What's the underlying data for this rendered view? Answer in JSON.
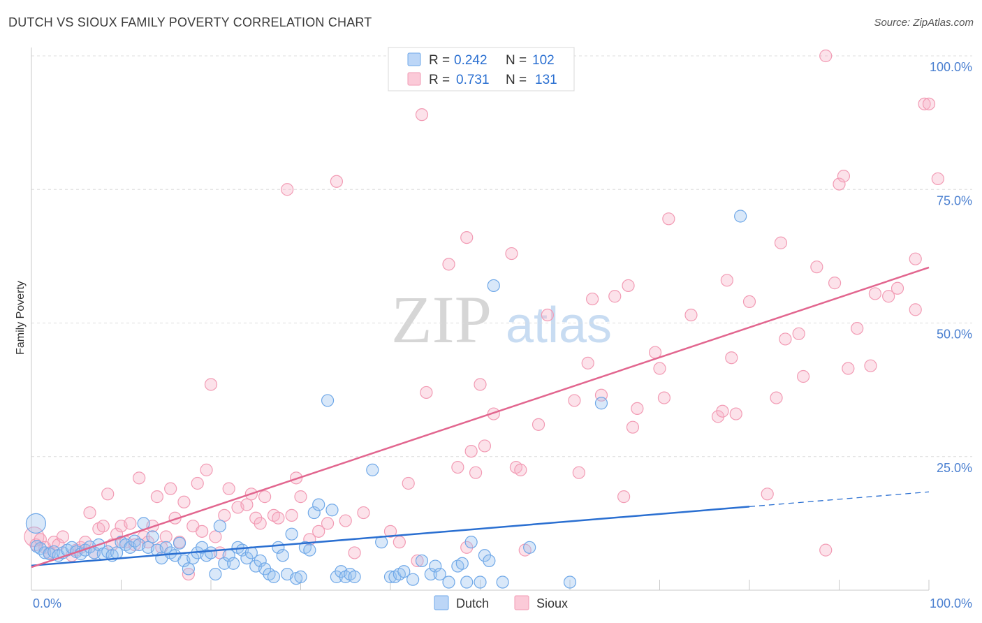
{
  "title": "DUTCH VS SIOUX FAMILY POVERTY CORRELATION CHART",
  "source": "Source: ZipAtlas.com",
  "watermark": {
    "zip": "ZIP",
    "atlas": "atlas"
  },
  "colors": {
    "dutch": "#6fa8e8",
    "dutch_line": "#2a6fd1",
    "sioux": "#f29bb4",
    "sioux_line": "#e2668f",
    "tick_text": "#4a7fd0"
  },
  "legend_top": [
    {
      "series": "Dutch",
      "r_label": "R =",
      "r_value": "0.242",
      "n_label": "N =",
      "n_value": "102"
    },
    {
      "series": "Sioux",
      "r_label": "R =",
      "r_value": "0.731",
      "n_label": "N =",
      "n_value": "131"
    }
  ],
  "legend_bottom": [
    "Dutch",
    "Sioux"
  ],
  "chart_data": {
    "type": "scatter",
    "title": "DUTCH VS SIOUX FAMILY POVERTY CORRELATION CHART",
    "xlabel": "",
    "ylabel": "Family Poverty",
    "xlim": [
      0,
      100
    ],
    "ylim": [
      0,
      100
    ],
    "x_tick_labels": [
      "0.0%",
      "100.0%"
    ],
    "y_tick_labels": [
      "25.0%",
      "50.0%",
      "75.0%",
      "100.0%"
    ],
    "y_ticks": [
      25,
      50,
      75,
      100
    ],
    "grid": true,
    "series": [
      {
        "name": "Dutch",
        "trend": {
          "x": [
            0,
            100
          ],
          "y": [
            4.6,
            18.4
          ],
          "solid_to_x": 80
        },
        "points": [
          [
            0.5,
            12.5
          ],
          [
            0.6,
            8.2
          ],
          [
            1.0,
            7.8
          ],
          [
            1.5,
            7.0
          ],
          [
            2.0,
            6.8
          ],
          [
            2.5,
            7.2
          ],
          [
            3.0,
            6.5
          ],
          [
            3.5,
            7.0
          ],
          [
            4.0,
            7.5
          ],
          [
            4.5,
            8.0
          ],
          [
            5.0,
            7.2
          ],
          [
            5.5,
            6.8
          ],
          [
            6.0,
            7.5
          ],
          [
            6.5,
            8.1
          ],
          [
            7.0,
            7.0
          ],
          [
            7.5,
            8.5
          ],
          [
            8.0,
            6.8
          ],
          [
            8.5,
            7.2
          ],
          [
            9.0,
            6.5
          ],
          [
            9.5,
            7.0
          ],
          [
            10.0,
            9.0
          ],
          [
            10.5,
            8.5
          ],
          [
            11.0,
            8.0
          ],
          [
            11.5,
            9.2
          ],
          [
            12.0,
            8.5
          ],
          [
            12.5,
            12.5
          ],
          [
            13.0,
            8.0
          ],
          [
            13.5,
            10.0
          ],
          [
            14.0,
            7.5
          ],
          [
            14.5,
            6.0
          ],
          [
            15.0,
            8.0
          ],
          [
            15.5,
            7.0
          ],
          [
            16.0,
            6.5
          ],
          [
            16.5,
            8.8
          ],
          [
            17.0,
            5.5
          ],
          [
            17.5,
            4.0
          ],
          [
            18.0,
            6.0
          ],
          [
            18.5,
            7.0
          ],
          [
            19.0,
            8.0
          ],
          [
            19.5,
            6.5
          ],
          [
            20.0,
            7.0
          ],
          [
            20.5,
            3.0
          ],
          [
            21.0,
            12.0
          ],
          [
            21.5,
            5.0
          ],
          [
            22.0,
            6.5
          ],
          [
            22.5,
            5.0
          ],
          [
            23.0,
            8.0
          ],
          [
            23.5,
            7.5
          ],
          [
            24.0,
            6.0
          ],
          [
            24.5,
            7.0
          ],
          [
            25.0,
            4.5
          ],
          [
            25.5,
            5.5
          ],
          [
            26.0,
            4.0
          ],
          [
            26.5,
            3.0
          ],
          [
            27.0,
            2.5
          ],
          [
            27.5,
            8.0
          ],
          [
            28.0,
            6.5
          ],
          [
            28.5,
            3.0
          ],
          [
            29.0,
            10.5
          ],
          [
            29.5,
            2.2
          ],
          [
            30.0,
            2.5
          ],
          [
            30.5,
            8.0
          ],
          [
            31.0,
            7.5
          ],
          [
            31.5,
            14.5
          ],
          [
            32.0,
            16.0
          ],
          [
            33.0,
            35.5
          ],
          [
            33.5,
            15.0
          ],
          [
            34.0,
            2.5
          ],
          [
            34.5,
            3.5
          ],
          [
            35.0,
            2.5
          ],
          [
            35.5,
            3.0
          ],
          [
            36.0,
            2.5
          ],
          [
            38.0,
            22.5
          ],
          [
            39.0,
            9.0
          ],
          [
            40.0,
            2.5
          ],
          [
            40.5,
            2.5
          ],
          [
            41.0,
            3.0
          ],
          [
            41.5,
            3.5
          ],
          [
            42.5,
            2.0
          ],
          [
            43.5,
            5.5
          ],
          [
            44.5,
            3.0
          ],
          [
            45.0,
            4.5
          ],
          [
            45.5,
            3.0
          ],
          [
            46.5,
            1.5
          ],
          [
            47.5,
            4.5
          ],
          [
            48.0,
            5.0
          ],
          [
            48.5,
            1.5
          ],
          [
            49.0,
            9.0
          ],
          [
            50.0,
            1.5
          ],
          [
            50.5,
            6.5
          ],
          [
            51.0,
            5.5
          ],
          [
            51.5,
            57.0
          ],
          [
            52.5,
            1.5
          ],
          [
            55.5,
            8.0
          ],
          [
            60.0,
            1.5
          ],
          [
            63.5,
            35.0
          ],
          [
            79.0,
            70.0
          ]
        ]
      },
      {
        "name": "Sioux",
        "trend": {
          "x": [
            0,
            100
          ],
          "y": [
            4.3,
            60.4
          ]
        },
        "points": [
          [
            0.3,
            10.0
          ],
          [
            0.5,
            8.5
          ],
          [
            1.0,
            9.5
          ],
          [
            1.5,
            8.0
          ],
          [
            2.0,
            7.0
          ],
          [
            2.5,
            9.0
          ],
          [
            3.0,
            8.5
          ],
          [
            3.5,
            10.0
          ],
          [
            4.5,
            6.5
          ],
          [
            5.0,
            7.5
          ],
          [
            5.5,
            8.0
          ],
          [
            6.0,
            9.0
          ],
          [
            6.5,
            14.5
          ],
          [
            7.0,
            7.0
          ],
          [
            7.5,
            11.5
          ],
          [
            8.0,
            12.0
          ],
          [
            8.5,
            18.0
          ],
          [
            9.0,
            8.5
          ],
          [
            9.5,
            10.5
          ],
          [
            10.0,
            12.0
          ],
          [
            10.5,
            9.0
          ],
          [
            11.0,
            12.5
          ],
          [
            11.5,
            8.5
          ],
          [
            12.0,
            21.0
          ],
          [
            12.5,
            10.0
          ],
          [
            13.0,
            9.0
          ],
          [
            13.5,
            12.0
          ],
          [
            14.0,
            17.5
          ],
          [
            14.5,
            8.0
          ],
          [
            15.0,
            10.0
          ],
          [
            15.5,
            19.0
          ],
          [
            16.0,
            13.5
          ],
          [
            16.5,
            9.0
          ],
          [
            17.0,
            16.5
          ],
          [
            17.5,
            3.0
          ],
          [
            18.0,
            12.0
          ],
          [
            18.5,
            20.0
          ],
          [
            19.0,
            11.0
          ],
          [
            19.5,
            22.5
          ],
          [
            20.0,
            38.5
          ],
          [
            20.5,
            10.0
          ],
          [
            21.0,
            7.0
          ],
          [
            21.5,
            14.0
          ],
          [
            22.0,
            19.0
          ],
          [
            23.0,
            15.5
          ],
          [
            24.0,
            16.0
          ],
          [
            24.5,
            18.0
          ],
          [
            25.0,
            13.5
          ],
          [
            25.5,
            12.5
          ],
          [
            26.0,
            17.5
          ],
          [
            27.0,
            14.0
          ],
          [
            27.5,
            13.5
          ],
          [
            28.5,
            75.0
          ],
          [
            29.0,
            14.0
          ],
          [
            29.5,
            21.0
          ],
          [
            30.0,
            17.5
          ],
          [
            31.0,
            9.5
          ],
          [
            32.0,
            11.0
          ],
          [
            33.0,
            12.5
          ],
          [
            34.0,
            76.5
          ],
          [
            35.0,
            13.0
          ],
          [
            36.0,
            7.0
          ],
          [
            37.0,
            14.5
          ],
          [
            40.0,
            11.0
          ],
          [
            41.0,
            9.0
          ],
          [
            42.0,
            20.0
          ],
          [
            43.0,
            5.5
          ],
          [
            43.5,
            89.0
          ],
          [
            44.0,
            37.0
          ],
          [
            46.5,
            61.0
          ],
          [
            47.5,
            23.0
          ],
          [
            48.5,
            8.0
          ],
          [
            48.5,
            66.0
          ],
          [
            49.0,
            26.0
          ],
          [
            49.5,
            22.0
          ],
          [
            50.0,
            38.5
          ],
          [
            50.5,
            27.0
          ],
          [
            51.5,
            33.0
          ],
          [
            53.5,
            63.0
          ],
          [
            54.0,
            23.0
          ],
          [
            54.5,
            22.5
          ],
          [
            55.0,
            7.5
          ],
          [
            56.5,
            31.0
          ],
          [
            57.5,
            51.5
          ],
          [
            60.5,
            35.5
          ],
          [
            61.0,
            22.0
          ],
          [
            62.0,
            42.5
          ],
          [
            62.5,
            54.5
          ],
          [
            63.5,
            36.5
          ],
          [
            65.0,
            55.0
          ],
          [
            66.0,
            17.5
          ],
          [
            66.5,
            57.0
          ],
          [
            67.0,
            30.5
          ],
          [
            67.5,
            34.0
          ],
          [
            69.5,
            44.5
          ],
          [
            70.0,
            41.5
          ],
          [
            70.5,
            36.0
          ],
          [
            71.0,
            69.5
          ],
          [
            73.5,
            51.5
          ],
          [
            76.5,
            32.5
          ],
          [
            77.0,
            33.5
          ],
          [
            77.5,
            58.0
          ],
          [
            78.0,
            43.5
          ],
          [
            78.5,
            33.0
          ],
          [
            80.0,
            54.0
          ],
          [
            82.0,
            18.0
          ],
          [
            83.0,
            36.0
          ],
          [
            83.5,
            65.0
          ],
          [
            84.0,
            47.0
          ],
          [
            85.5,
            48.0
          ],
          [
            86.0,
            40.0
          ],
          [
            87.5,
            60.5
          ],
          [
            88.5,
            7.5
          ],
          [
            88.5,
            100.0
          ],
          [
            89.5,
            57.5
          ],
          [
            90.0,
            76.0
          ],
          [
            90.5,
            77.5
          ],
          [
            91.0,
            41.5
          ],
          [
            92.0,
            49.0
          ],
          [
            93.5,
            42.0
          ],
          [
            94.0,
            55.5
          ],
          [
            95.5,
            55.0
          ],
          [
            96.5,
            56.5
          ],
          [
            98.5,
            62.0
          ],
          [
            98.5,
            52.5
          ],
          [
            99.5,
            91.0
          ],
          [
            100.0,
            91.0
          ],
          [
            101.0,
            77.0
          ]
        ]
      }
    ]
  }
}
